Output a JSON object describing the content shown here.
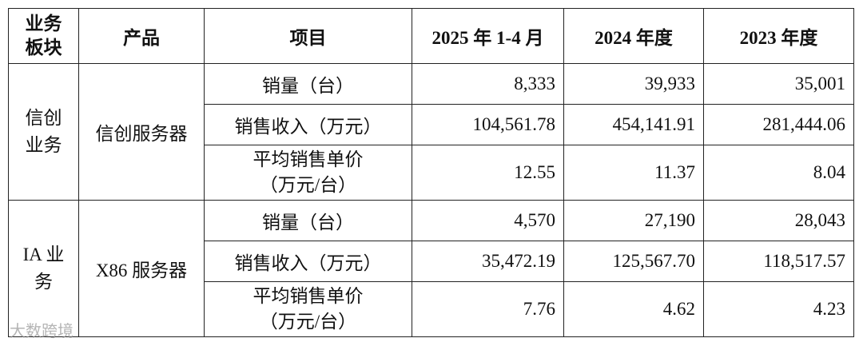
{
  "table": {
    "header": [
      "业务板块",
      "产品",
      "项目",
      "2025 年 1-4 月",
      "2024 年度",
      "2023 年度"
    ],
    "groups": [
      {
        "segment": "信创业务",
        "product": "信创服务器",
        "rows": [
          [
            "销量（台）",
            "8,333",
            "39,933",
            "35,001"
          ],
          [
            "销售收入（万元）",
            "104,561.78",
            "454,141.91",
            "281,444.06"
          ],
          [
            "平均销售单价（万元/台）",
            "12.55",
            "11.37",
            "8.04"
          ]
        ]
      },
      {
        "segment": "IA 业务",
        "product": "X86 服务器",
        "rows": [
          [
            "销量（台）",
            "4,570",
            "27,190",
            "28,043"
          ],
          [
            "销售收入（万元）",
            "35,472.19",
            "125,567.70",
            "118,517.57"
          ],
          [
            "平均销售单价（万元/台）",
            "7.76",
            "4.62",
            "4.23"
          ]
        ]
      }
    ]
  },
  "watermark": "大数跨境"
}
